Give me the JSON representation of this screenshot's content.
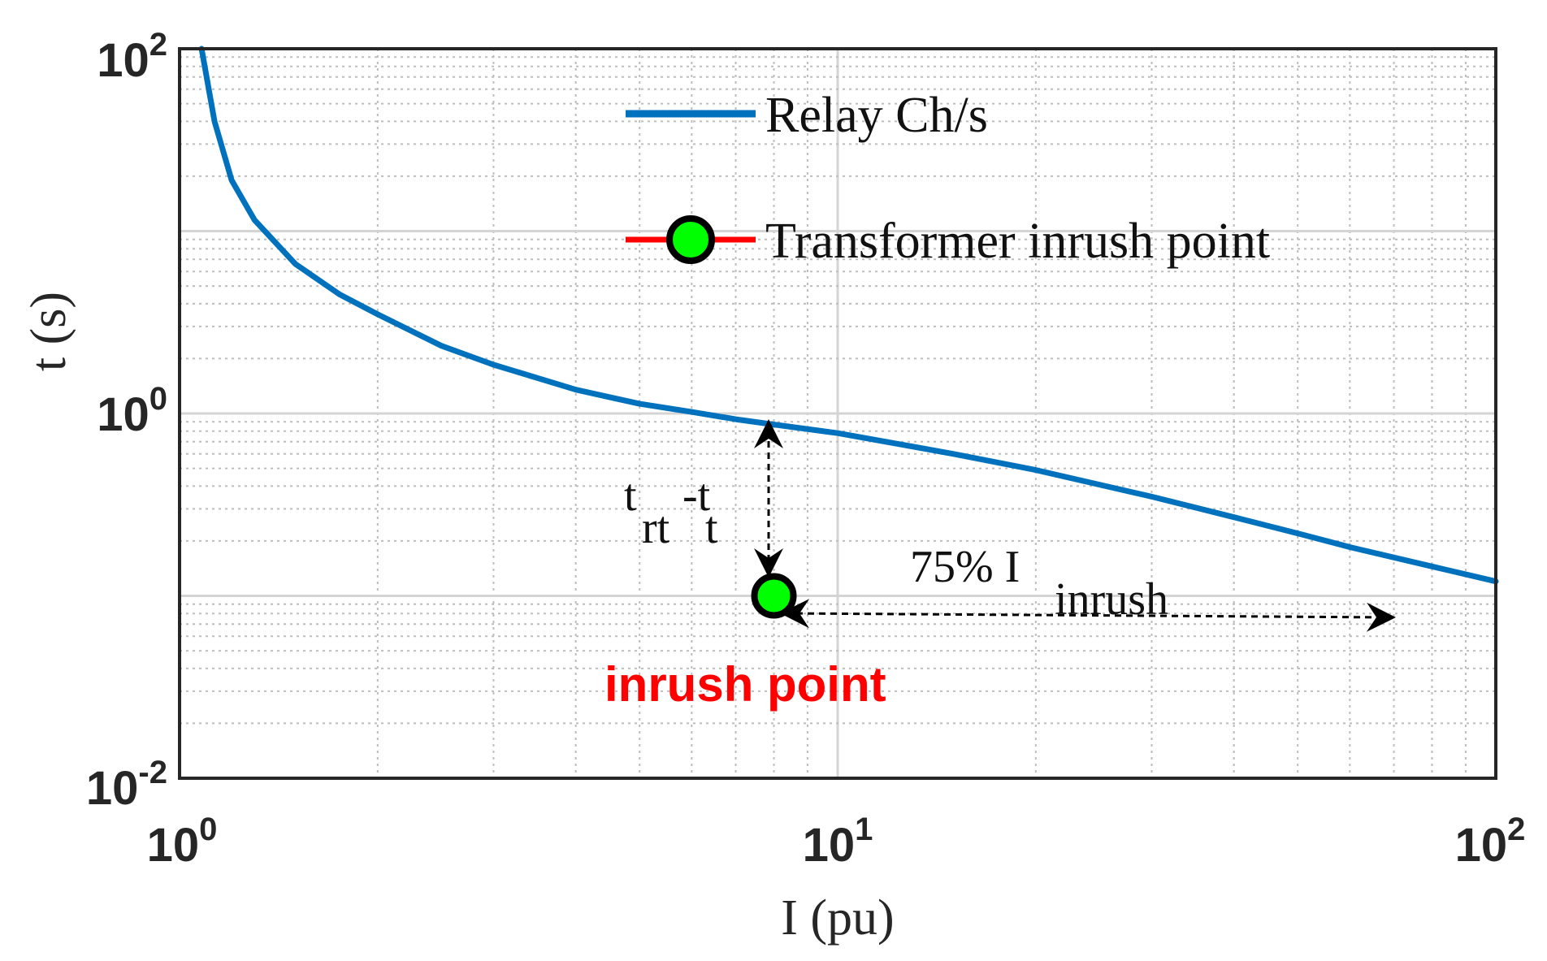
{
  "chart_data": {
    "type": "line",
    "x_scale": "log",
    "y_scale": "log",
    "xlim": [
      1,
      100
    ],
    "ylim": [
      0.01,
      100
    ],
    "xlabel": "I (pu)",
    "ylabel": "t (s)",
    "grid": true,
    "legend_position": "top-center",
    "x_ticks": [
      {
        "base": "10",
        "exp": "0",
        "value": 1
      },
      {
        "base": "10",
        "exp": "1",
        "value": 10
      },
      {
        "base": "10",
        "exp": "2",
        "value": 100
      }
    ],
    "y_ticks": [
      {
        "base": "10",
        "exp": "-2",
        "value": 0.01
      },
      {
        "base": "10",
        "exp": "0",
        "value": 1
      },
      {
        "base": "10",
        "exp": "2",
        "value": 100
      }
    ],
    "series": [
      {
        "name": "Relay Ch/s",
        "color": "#0072bd",
        "x": [
          1.08,
          1.13,
          1.2,
          1.3,
          1.5,
          1.75,
          2,
          2.5,
          3,
          4,
          5,
          6,
          7,
          8,
          10,
          15,
          20,
          30,
          40,
          50,
          60,
          80,
          100
        ],
        "y": [
          100,
          40,
          19,
          11.5,
          6.6,
          4.5,
          3.5,
          2.35,
          1.85,
          1.35,
          1.13,
          1.02,
          0.93,
          0.87,
          0.78,
          0.6,
          0.49,
          0.35,
          0.27,
          0.22,
          0.185,
          0.145,
          0.12
        ]
      },
      {
        "name": "Transformer inrush point",
        "color": "#ff0000",
        "marker_color": "#00ff00",
        "x": [
          8
        ],
        "y": [
          0.1
        ]
      }
    ],
    "annotations": {
      "time_diff_main_1": "t",
      "time_diff_sub_1": "rt",
      "time_diff_sep": "-t",
      "time_diff_sub_2": "t",
      "current_main": "75% I",
      "current_sub": "inrush",
      "point_label": "inrush point"
    }
  }
}
